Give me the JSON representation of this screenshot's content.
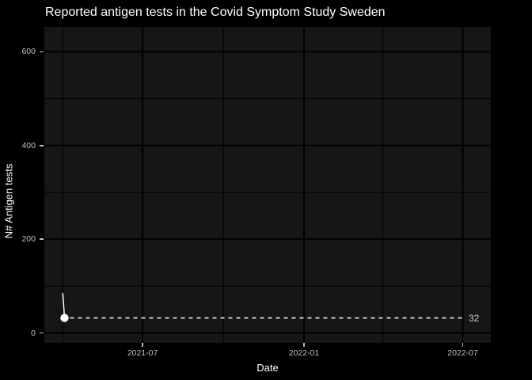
{
  "chart_data": {
    "type": "line",
    "title": "Reported antigen tests in the Covid Symptom Study Sweden",
    "xlabel": "Date",
    "ylabel": "N# Antigen tests",
    "x_domain": [
      "2021-03-11",
      "2022-08-02"
    ],
    "y_domain": [
      -21,
      653
    ],
    "x_breaks": [
      {
        "label": "2021-07",
        "date": "2021-07-01"
      },
      {
        "label": "2022-01",
        "date": "2022-01-01"
      },
      {
        "label": "2022-07",
        "date": "2022-07-01"
      }
    ],
    "x_minor_breaks": [
      "2021-04-01",
      "2021-10-01",
      "2022-04-01"
    ],
    "y_breaks": [
      {
        "label": "0",
        "value": 0
      },
      {
        "label": "200",
        "value": 200
      },
      {
        "label": "400",
        "value": 400
      },
      {
        "label": "600",
        "value": 600
      }
    ],
    "y_minor_breaks": [
      100,
      300,
      500
    ],
    "series": [
      {
        "name": "Antigen tests",
        "points": [
          {
            "date": "2021-04-01",
            "value": 85
          },
          {
            "date": "2021-04-03",
            "value": 32
          }
        ]
      }
    ],
    "last_value_marker": {
      "date": "2021-04-03",
      "value": 32,
      "label": "32"
    },
    "reference_line": {
      "value": 32,
      "style": "dashed"
    },
    "legend": "none",
    "grid": true,
    "colors": {
      "background": "#000000",
      "panel": "#161616",
      "grid": "#000000",
      "series": "#ffffff",
      "title_text": "#ffffff",
      "axis_title_text": "#ffffff",
      "tick_text": "#bfbfbf",
      "annotation_text": "#c9c9c9"
    }
  }
}
